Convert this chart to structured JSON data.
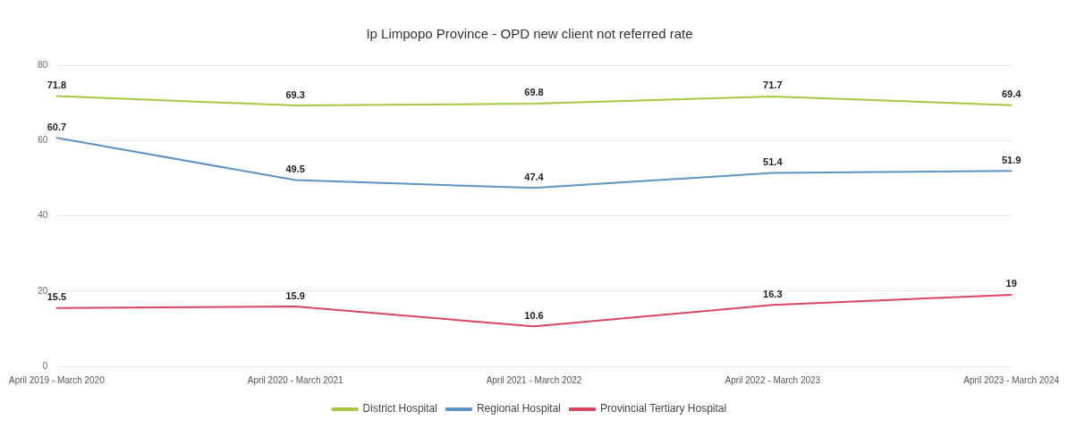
{
  "chart_data": {
    "type": "line",
    "title": "Ip Limpopo Province - OPD new client not referred rate",
    "categories": [
      "April 2019 - March 2020",
      "April 2020 - March 2021",
      "April 2021 - March 2022",
      "April 2022 - March 2023",
      "April 2023 - March 2024"
    ],
    "series": [
      {
        "name": "District Hospital",
        "color": "#a5c83c",
        "values": [
          71.8,
          69.3,
          69.8,
          71.7,
          69.4
        ]
      },
      {
        "name": "Regional Hospital",
        "color": "#5b93c4",
        "values": [
          60.7,
          49.5,
          47.4,
          51.4,
          51.9
        ]
      },
      {
        "name": "Provincial Tertiary Hospital",
        "color": "#d9455f",
        "values": [
          15.5,
          15.9,
          10.6,
          16.3,
          19
        ]
      }
    ],
    "ylim": [
      0,
      80
    ],
    "yticks": [
      0,
      20,
      40,
      60,
      80
    ],
    "grid": "y",
    "legend": "bottom",
    "marker": "none",
    "line_style": "solid",
    "data_labels": true
  }
}
